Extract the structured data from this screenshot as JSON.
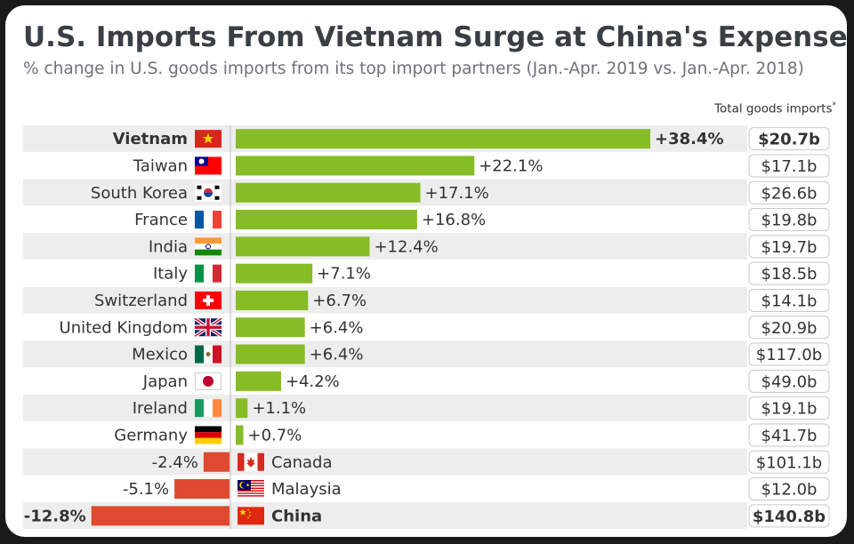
{
  "header": {
    "title": "U.S. Imports From Vietnam Surge at China's Expense",
    "subtitle": "% change in U.S. goods imports from its top import partners (Jan.-Apr. 2019 vs. Jan.-Apr. 2018)",
    "total_label": "Total goods imports",
    "total_marker": "*"
  },
  "colors": {
    "positive": "#86bc25",
    "negative": "#e0492f",
    "stripe": "#ededed",
    "text": "#333333"
  },
  "chart_data": {
    "type": "bar",
    "orientation": "horizontal",
    "title": "U.S. Imports From Vietnam Surge at China's Expense",
    "categories": [
      "Vietnam",
      "Taiwan",
      "South Korea",
      "France",
      "India",
      "Italy",
      "Switzerland",
      "United Kingdom",
      "Mexico",
      "Japan",
      "Ireland",
      "Germany",
      "Canada",
      "Malaysia",
      "China"
    ],
    "values": [
      38.4,
      22.1,
      17.1,
      16.8,
      12.4,
      7.1,
      6.7,
      6.4,
      6.4,
      4.2,
      1.1,
      0.7,
      -2.4,
      -5.1,
      -12.8
    ],
    "labels": [
      "+38.4%",
      "+22.1%",
      "+17.1%",
      "+16.8%",
      "+12.4%",
      "+7.1%",
      "+6.7%",
      "+6.4%",
      "+6.4%",
      "+4.2%",
      "+1.1%",
      "+0.7%",
      "-2.4%",
      "-5.1%",
      "-12.8%"
    ],
    "totals": [
      "$20.7b",
      "$17.1b",
      "$26.6b",
      "$19.8b",
      "$19.7b",
      "$18.5b",
      "$14.1b",
      "$20.9b",
      "$117.0b",
      "$49.0b",
      "$19.1b",
      "$41.7b",
      "$101.1b",
      "$12.0b",
      "$140.8b"
    ],
    "flags": [
      "vietnam-flag-icon",
      "taiwan-flag-icon",
      "south-korea-flag-icon",
      "france-flag-icon",
      "india-flag-icon",
      "italy-flag-icon",
      "switzerland-flag-icon",
      "united-kingdom-flag-icon",
      "mexico-flag-icon",
      "japan-flag-icon",
      "ireland-flag-icon",
      "germany-flag-icon",
      "canada-flag-icon",
      "malaysia-flag-icon",
      "china-flag-icon"
    ],
    "bold": [
      "Vietnam",
      "China"
    ]
  }
}
